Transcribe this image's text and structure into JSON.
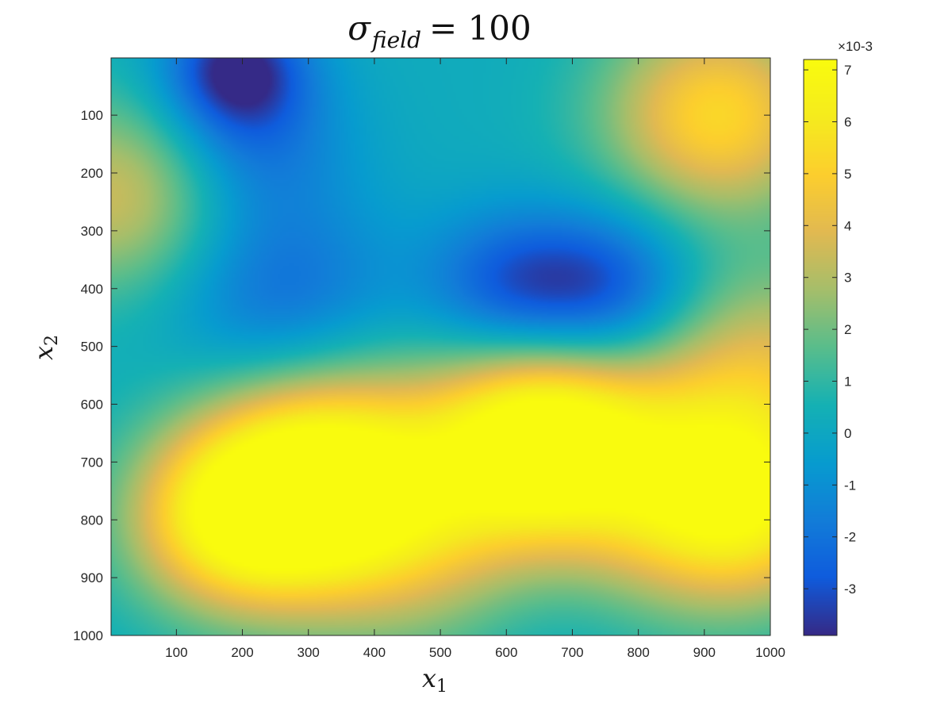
{
  "chart_data": {
    "type": "heatmap",
    "title": {
      "symbol": "σ",
      "subscript": "field",
      "rest": "= 100"
    },
    "xlabel": {
      "symbol": "x",
      "subscript": "1"
    },
    "ylabel": {
      "symbol": "x",
      "subscript": "2"
    },
    "x_ticks": [
      100,
      200,
      300,
      400,
      500,
      600,
      700,
      800,
      900,
      1000
    ],
    "y_ticks": [
      100,
      200,
      300,
      400,
      500,
      600,
      700,
      800,
      900,
      1000
    ],
    "xlim": [
      1,
      1000
    ],
    "ylim": [
      1,
      1000
    ],
    "y_reversed": true,
    "colorbar": {
      "min": -0.0039,
      "max": 0.0072,
      "ticks": [
        -3,
        -2,
        -1,
        0,
        1,
        2,
        3,
        4,
        5,
        6,
        7
      ],
      "exponent_label": "×10-3",
      "colormap": "parula"
    },
    "field_features": [
      {
        "x": 190,
        "y": 20,
        "value": -0.0039,
        "width": 75
      },
      {
        "x": 220,
        "y": 150,
        "value": -0.0018,
        "width": 100
      },
      {
        "x": 260,
        "y": 410,
        "value": -0.0022,
        "width": 120
      },
      {
        "x": 600,
        "y": 395,
        "value": -0.0025,
        "width": 90
      },
      {
        "x": 750,
        "y": 400,
        "value": -0.0031,
        "width": 95
      },
      {
        "x": 650,
        "y": 950,
        "value": -0.0005,
        "width": 110
      },
      {
        "x": 920,
        "y": 100,
        "value": 0.0053,
        "width": 120
      },
      {
        "x": 10,
        "y": 240,
        "value": 0.0036,
        "width": 120
      },
      {
        "x": 320,
        "y": 730,
        "value": 0.0072,
        "width": 130
      },
      {
        "x": 180,
        "y": 800,
        "value": 0.0055,
        "width": 110
      },
      {
        "x": 650,
        "y": 660,
        "value": 0.0066,
        "width": 110
      },
      {
        "x": 960,
        "y": 770,
        "value": 0.0057,
        "width": 120
      },
      {
        "x": 820,
        "y": 720,
        "value": 0.0038,
        "width": 150
      },
      {
        "x": 480,
        "y": 810,
        "value": 0.0035,
        "width": 150
      },
      {
        "x": 1000,
        "y": 520,
        "value": 0.003,
        "width": 120
      }
    ],
    "baseline_value": 0.0002
  }
}
